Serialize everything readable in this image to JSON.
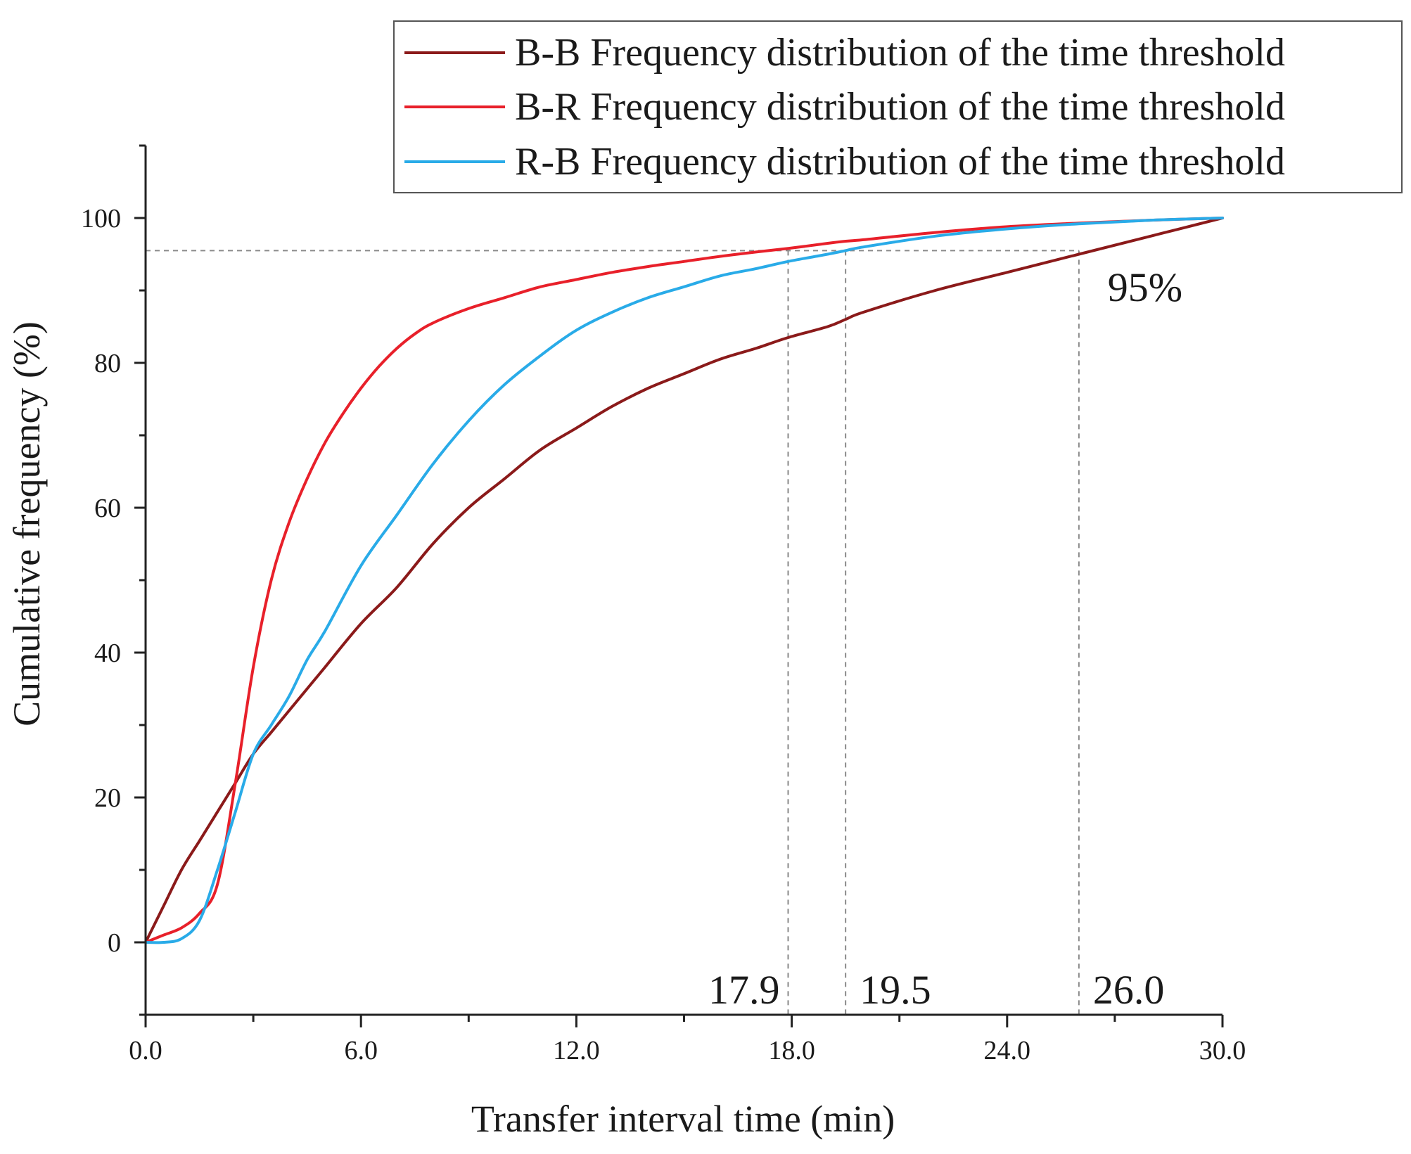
{
  "chart_data": {
    "type": "line",
    "xlabel": "Transfer interval time (min)",
    "ylabel": "Cumulative frequency (%)",
    "xlim": [
      0,
      30
    ],
    "ylim": [
      -10,
      110
    ],
    "x_ticks": [
      0,
      6,
      12,
      18,
      24,
      30
    ],
    "x_tick_labels": [
      "0.0",
      "6.0",
      "12.0",
      "18.0",
      "24.0",
      "30.0"
    ],
    "y_ticks": [
      0,
      20,
      40,
      60,
      80,
      100
    ],
    "y_tick_labels": [
      "0",
      "20",
      "40",
      "60",
      "80",
      "100"
    ],
    "grid": false,
    "legend_position": "top-right",
    "series": [
      {
        "name": "B-B Frequency distribution of the time threshold",
        "color": "#8b1a1a",
        "x": [
          0,
          0.5,
          1,
          1.5,
          2,
          2.5,
          3,
          3.5,
          4,
          4.5,
          5,
          6,
          7,
          8,
          9,
          10,
          11,
          12,
          13,
          14,
          15,
          16,
          17,
          17.9,
          19,
          19.5,
          20,
          22,
          24,
          26,
          28,
          30
        ],
        "values": [
          0,
          5,
          10,
          14,
          18,
          22,
          26,
          29,
          32,
          35,
          38,
          44,
          49,
          55,
          60,
          64,
          68,
          71,
          74,
          76.5,
          78.5,
          80.5,
          82,
          83.5,
          85,
          86,
          87,
          90,
          92.5,
          95,
          97.5,
          100
        ]
      },
      {
        "name": "B-R Frequency distribution of the time threshold",
        "color": "#e8202a",
        "x": [
          0,
          0.5,
          1,
          1.5,
          2,
          2.5,
          3,
          3.5,
          4,
          4.5,
          5,
          5.5,
          6,
          6.5,
          7,
          7.5,
          8,
          9,
          10,
          11,
          12,
          13,
          14,
          15,
          16,
          17,
          17.9,
          19,
          19.5,
          20,
          22,
          24,
          26,
          28,
          30
        ],
        "values": [
          0,
          1,
          2,
          4,
          8,
          22,
          38,
          50,
          58,
          64,
          69,
          73,
          76.5,
          79.5,
          82,
          84,
          85.5,
          87.5,
          89,
          90.5,
          91.5,
          92.5,
          93.3,
          94,
          94.7,
          95.3,
          95.8,
          96.5,
          96.8,
          97,
          98,
          98.8,
          99.3,
          99.7,
          100
        ]
      },
      {
        "name": "R-B Frequency distribution of the time threshold",
        "color": "#29abe8",
        "x": [
          0,
          0.5,
          1,
          1.5,
          2,
          2.5,
          3,
          3.5,
          4,
          4.5,
          5,
          6,
          7,
          8,
          9,
          10,
          11,
          12,
          13,
          14,
          15,
          16,
          17,
          17.9,
          19,
          19.5,
          20,
          22,
          24,
          26,
          28,
          30
        ],
        "values": [
          0,
          0,
          0.5,
          3,
          10,
          18,
          26,
          30,
          34,
          39,
          43,
          52,
          59,
          66,
          72,
          77,
          81,
          84.5,
          87,
          89,
          90.5,
          92,
          93,
          94,
          95,
          95.5,
          96,
          97.5,
          98.5,
          99.2,
          99.7,
          100
        ]
      }
    ],
    "reference_lines": {
      "horizontal_y": 95.5,
      "vertical_x": [
        17.9,
        19.5,
        26.0
      ]
    },
    "annotations": [
      {
        "text": "95%",
        "x": 26.8,
        "y": 90.5
      },
      {
        "text": "17.9",
        "x": 17.9,
        "y": -6.5
      },
      {
        "text": "19.5",
        "x": 19.5,
        "y": -6.5
      },
      {
        "text": "26.0",
        "x": 26.0,
        "y": -6.5
      }
    ]
  }
}
